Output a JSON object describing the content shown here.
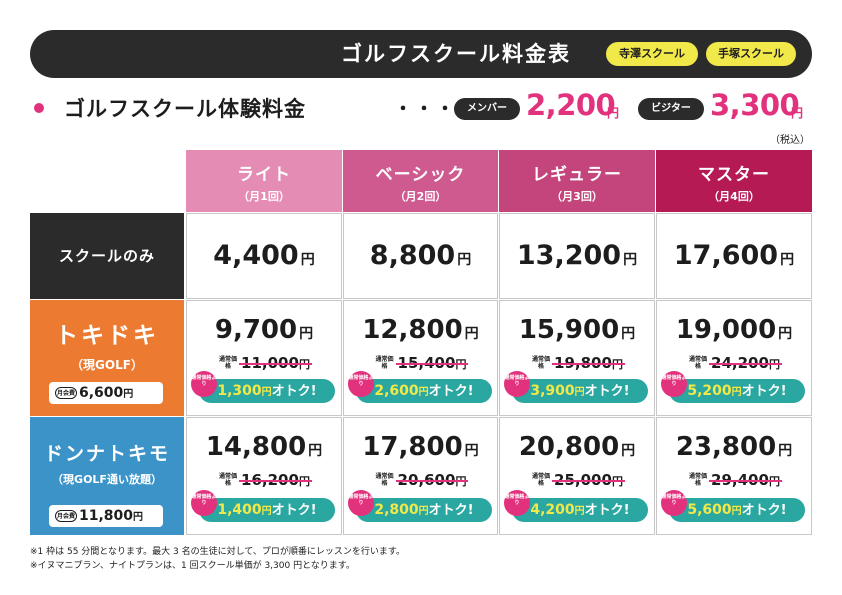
{
  "header": {
    "title": "ゴルフスクール料金表",
    "branches": [
      "寺澤スクール",
      "手塚スクール"
    ]
  },
  "trial": {
    "label": "ゴルフスクール体験料金",
    "dots": "・・・",
    "member_label": "メンバー",
    "member_price": "2,200",
    "visitor_label": "ビジター",
    "visitor_price": "3,300",
    "yen": "円",
    "tax_note": "（税込）"
  },
  "columns": [
    {
      "name": "ライト",
      "freq": "（月1回）"
    },
    {
      "name": "ベーシック",
      "freq": "（月2回）"
    },
    {
      "name": "レギュラー",
      "freq": "（月3回）"
    },
    {
      "name": "マスター",
      "freq": "（月4回）"
    }
  ],
  "rows": {
    "school_only": {
      "label": "スクールのみ",
      "prices": [
        "4,400",
        "8,800",
        "13,200",
        "17,600"
      ]
    },
    "tokidoki": {
      "label": "トキドキ",
      "sub": "（現GOLF）",
      "fee_tag": "月会費",
      "fee": "6,600",
      "prices": [
        "9,700",
        "12,800",
        "15,900",
        "19,000"
      ],
      "original": [
        "11,000",
        "15,400",
        "19,800",
        "24,200"
      ],
      "savings": [
        "1,300",
        "2,600",
        "3,900",
        "5,200"
      ]
    },
    "donnatokimo": {
      "label": "ドンナトキモ",
      "sub": "（現GOLF通い放題）",
      "fee_tag": "月会費",
      "fee": "11,800",
      "prices": [
        "14,800",
        "17,800",
        "20,800",
        "23,800"
      ],
      "original": [
        "16,200",
        "20,600",
        "25,000",
        "29,400"
      ],
      "savings": [
        "1,400",
        "2,800",
        "4,200",
        "5,600"
      ]
    }
  },
  "labels": {
    "yen": "円",
    "regular_price_tag": "通常価格",
    "badge_text": "通常価格より",
    "otoku": "オトク!"
  },
  "footnotes": [
    "※1 枠は 55 分間となります。最大 3 名の生徒に対して、プロが順番にレッスンを行います。",
    "※イヌマニプラン、ナイトプランは、1 回スクール単価が 3,300 円となります。"
  ],
  "colors": {
    "header_bg": "#2b2b2b",
    "branch_bg": "#f1e84a",
    "accent_pink": "#e2327d",
    "col_light": "#e48cb4",
    "col_basic": "#cf5a8f",
    "col_regular": "#c4447c",
    "col_master": "#b51a55",
    "row_school": "#2b2b2b",
    "row_tokidoki": "#ec7a30",
    "row_donna": "#3b93c8",
    "save_pill": "#2aa7a0"
  }
}
